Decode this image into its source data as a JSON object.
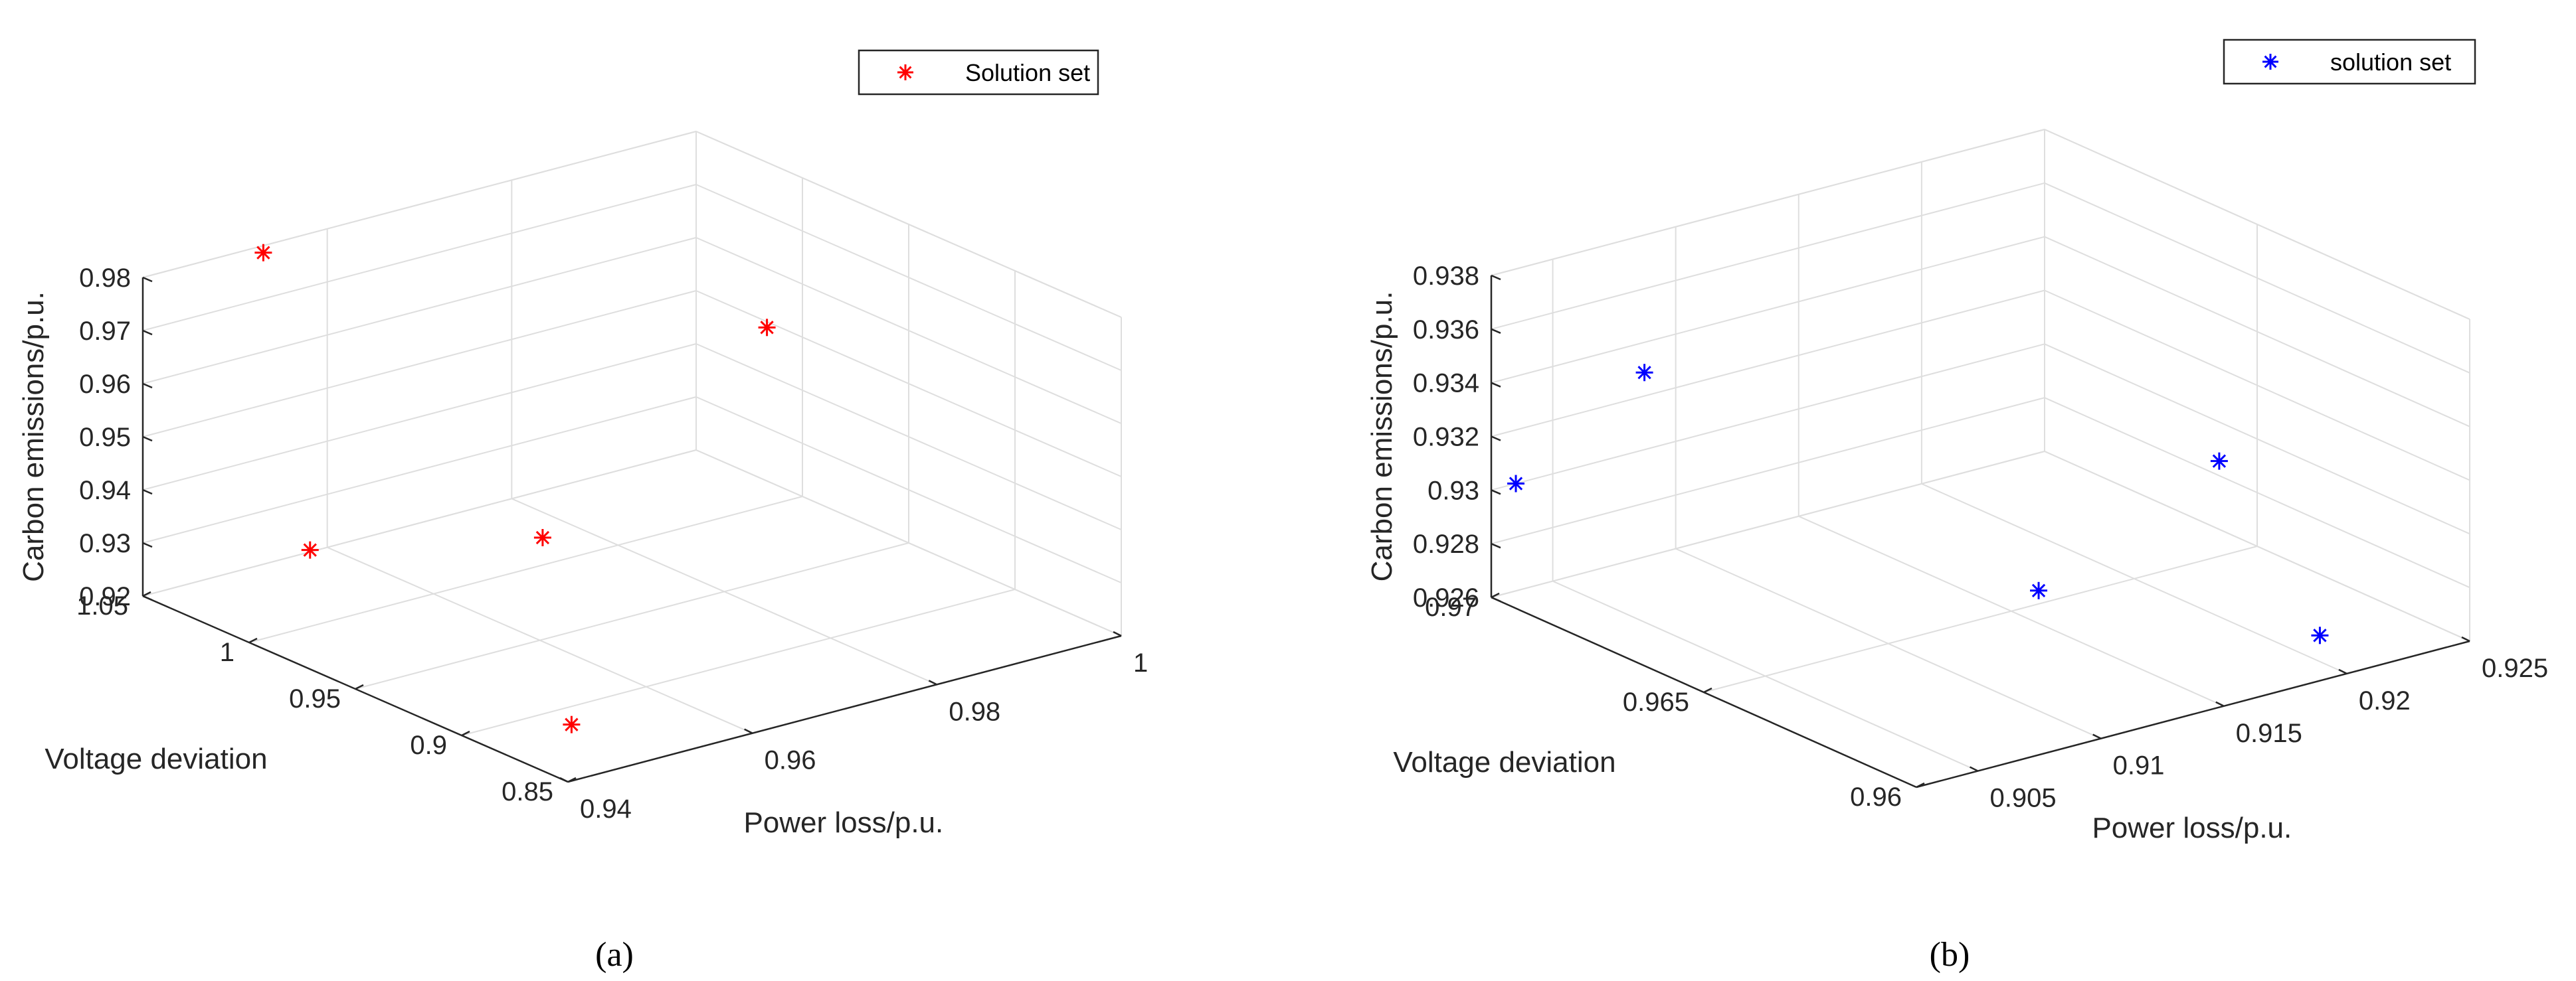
{
  "chart_data": [
    {
      "type": "scatter3d",
      "panel_caption": "(a)",
      "xlabel": "Voltage deviation",
      "ylabel": "Power loss/p.u.",
      "zlabel": "Carbon emissions/p.u.",
      "legend": "Solution set",
      "color": "#ff0000",
      "xlim": [
        0.85,
        1.05
      ],
      "ylim": [
        0.94,
        1.0
      ],
      "zlim": [
        0.92,
        0.98
      ],
      "xticks": [
        "0.85",
        "0.9",
        "0.95",
        "1",
        "1.05"
      ],
      "yticks": [
        "0.94",
        "0.96",
        "0.98",
        "1"
      ],
      "zticks": [
        "0.92",
        "0.93",
        "0.94",
        "0.95",
        "0.96",
        "0.97",
        "0.98"
      ],
      "points": [
        {
          "x": 0.98,
          "y": 0.942,
          "z": 0.94
        },
        {
          "x": 0.87,
          "y": 0.945,
          "z": 0.925
        },
        {
          "x": 0.94,
          "y": 0.958,
          "z": 0.942
        },
        {
          "x": 1.015,
          "y": 0.945,
          "z": 0.9885
        },
        {
          "x": 0.995,
          "y": 0.995,
          "z": 0.955
        }
      ]
    },
    {
      "type": "scatter3d",
      "panel_caption": "(b)",
      "xlabel": "Voltage deviation",
      "ylabel": "Power loss/p.u.",
      "zlabel": "Carbon emissions/p.u.",
      "legend": "solution set",
      "color": "#0000ff",
      "xlim": [
        0.96,
        0.97
      ],
      "ylim": [
        0.9025,
        0.925
      ],
      "zlim": [
        0.926,
        0.938
      ],
      "xticks": [
        "0.96",
        "0.965",
        "0.97"
      ],
      "yticks": [
        "0.905",
        "0.91",
        "0.915",
        "0.92",
        "0.925"
      ],
      "zticks": [
        "0.926",
        "0.928",
        "0.93",
        "0.932",
        "0.934",
        "0.936",
        "0.938"
      ],
      "points": [
        {
          "x": 0.97,
          "y": 0.9035,
          "z": 0.93
        },
        {
          "x": 0.969,
          "y": 0.907,
          "z": 0.934
        },
        {
          "x": 0.961,
          "y": 0.9092,
          "z": 0.931
        },
        {
          "x": 0.963,
          "y": 0.92,
          "z": 0.9318
        },
        {
          "x": 0.9615,
          "y": 0.9215,
          "z": 0.926
        }
      ]
    }
  ]
}
